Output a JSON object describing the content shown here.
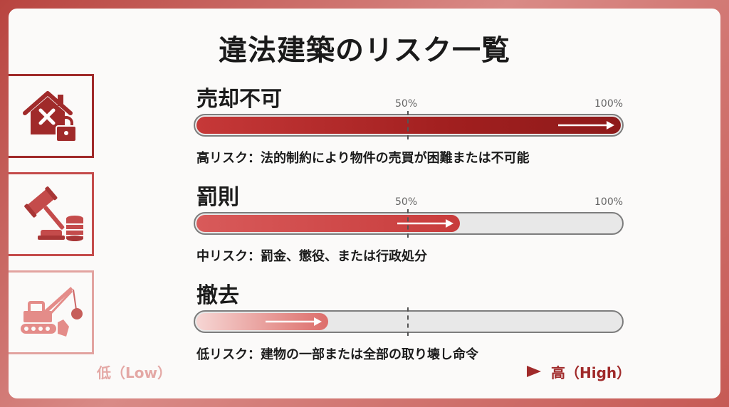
{
  "title": "違法建築のリスク一覧",
  "scale": {
    "low": "低（Low）",
    "high": "高（High）"
  },
  "ticks": {
    "mid": "50%",
    "max": "100%"
  },
  "rows": [
    {
      "label": "売却不可",
      "level": 1.0,
      "description": "高リスク：法的制約により物件の売買が困難または不可能",
      "icon": "house-lock-icon",
      "color": "#a02a2a"
    },
    {
      "label": "罰則",
      "level": 0.62,
      "description": "中リスク：罰金、懲役、または行政処分",
      "icon": "gavel-coins-icon",
      "color": "#c44b4b"
    },
    {
      "label": "撤去",
      "level": 0.31,
      "description": "低リスク：建物の一部または全部の取り壊し命令",
      "icon": "bulldozer-wrecking-ball-icon",
      "color": "#e48c89"
    }
  ]
}
